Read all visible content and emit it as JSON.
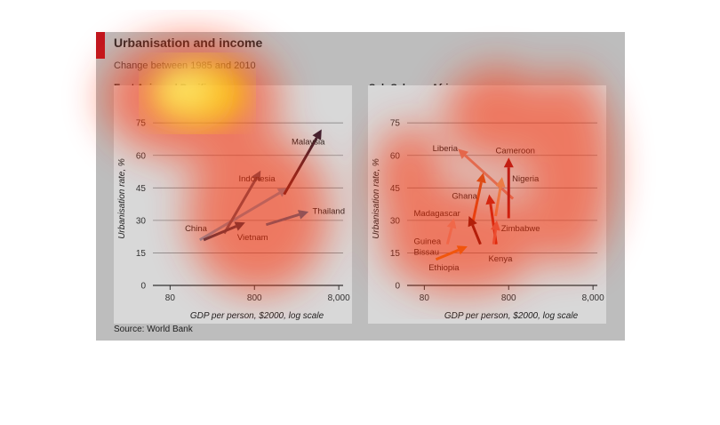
{
  "figure": {
    "title": "Urbanisation and income",
    "subtitle": "Change between 1985 and 2010",
    "source": "Source: World Bank"
  },
  "colors": {
    "brand_red": "#c0161e",
    "panel_bg": "#d8d8d8",
    "card_bg": "#bdbdbd"
  },
  "chart_data": [
    {
      "type": "arrow-scatter",
      "title": "East Asia and Pacific",
      "xlabel": "GDP per person, $2000, log scale",
      "ylabel": "Urbanisation rate, %",
      "xscale": "log",
      "xlim": [
        50,
        9000
      ],
      "ylim": [
        0,
        80
      ],
      "xticks": [
        80,
        800,
        8000
      ],
      "xtick_labels": [
        "80",
        "800",
        "8,000"
      ],
      "yticks": [
        0,
        15,
        30,
        45,
        60,
        75
      ],
      "series": [
        {
          "name": "China",
          "x": [
            180,
            2000
          ],
          "y": [
            21,
            45
          ],
          "color": "#6fa6c8",
          "label_at": [
            120,
            25
          ]
        },
        {
          "name": "Indonesia",
          "x": [
            350,
            950
          ],
          "y": [
            24,
            53
          ],
          "color": "#4b5f75",
          "label_at": [
            520,
            48
          ]
        },
        {
          "name": "Malaysia",
          "x": [
            1800,
            5000
          ],
          "y": [
            42,
            72
          ],
          "color": "#3c2030",
          "label_at": [
            2200,
            65
          ]
        },
        {
          "name": "Thailand",
          "x": [
            1100,
            3500
          ],
          "y": [
            28,
            34
          ],
          "color": "#2c78a8",
          "label_at": [
            3900,
            33
          ]
        },
        {
          "name": "Vietnam",
          "x": [
            200,
            620
          ],
          "y": [
            21,
            29
          ],
          "color": "#1e3f5c",
          "label_at": [
            500,
            21
          ]
        }
      ]
    },
    {
      "type": "arrow-scatter",
      "title": "Sub-Saharan Africa",
      "xlabel": "GDP per person, $2000, log scale",
      "ylabel": "Urbanisation rate, %",
      "xscale": "log",
      "xlim": [
        50,
        9000
      ],
      "ylim": [
        0,
        80
      ],
      "xticks": [
        80,
        800,
        8000
      ],
      "xtick_labels": [
        "80",
        "800",
        "8,000"
      ],
      "yticks": [
        0,
        15,
        30,
        45,
        60,
        75
      ],
      "series": [
        {
          "name": "Liberia",
          "x": [
            900,
            200
          ],
          "y": [
            40,
            63
          ],
          "color": "#d9826c",
          "label_at": [
            100,
            62
          ]
        },
        {
          "name": "Cameroon",
          "x": [
            560,
            670
          ],
          "y": [
            32,
            50
          ],
          "color": "#e49b60",
          "label_at": [
            560,
            61
          ]
        },
        {
          "name": "Nigeria",
          "x": [
            800,
            800
          ],
          "y": [
            31,
            59
          ],
          "color": "#a5181d",
          "label_at": [
            880,
            48
          ]
        },
        {
          "name": "Ghana",
          "x": [
            300,
            400
          ],
          "y": [
            29,
            52
          ],
          "color": "#d2551c",
          "label_at": [
            170,
            40
          ]
        },
        {
          "name": "Madagascar",
          "x": [
            370,
            270
          ],
          "y": [
            19,
            32
          ],
          "color": "#5b1117",
          "label_at": [
            60,
            32
          ]
        },
        {
          "name": "Zimbabwe",
          "x": [
            570,
            470
          ],
          "y": [
            19,
            42
          ],
          "color": "#b8261c",
          "label_at": [
            650,
            25
          ]
        },
        {
          "name": "Guinea Bissau",
          "x": [
            150,
            180
          ],
          "y": [
            19,
            31
          ],
          "color": "#deb1a2",
          "label_at": [
            60,
            19
          ]
        },
        {
          "name": "Kenya",
          "x": [
            530,
            580
          ],
          "y": [
            19,
            30
          ],
          "color": "#d5756a",
          "label_at": [
            460,
            11
          ]
        },
        {
          "name": "Ethiopia",
          "x": [
            110,
            260
          ],
          "y": [
            12,
            18
          ],
          "color": "#e0881c",
          "label_at": [
            90,
            7
          ]
        }
      ]
    }
  ]
}
